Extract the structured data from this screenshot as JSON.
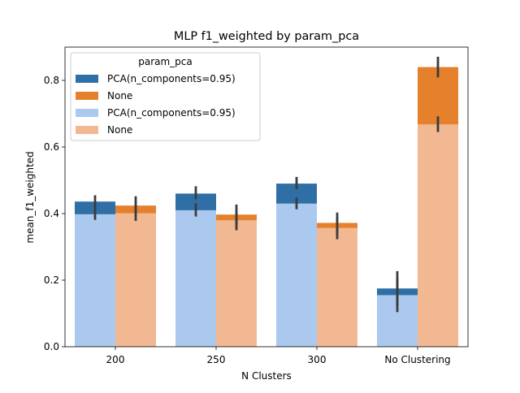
{
  "chart_data": {
    "type": "bar",
    "title": "MLP f1_weighted by param_pca",
    "xlabel": "N Clusters",
    "ylabel": "mean_f1_weighted",
    "categories": [
      "200",
      "250",
      "300",
      "No Clustering"
    ],
    "ylim": [
      0,
      0.9
    ],
    "yticks": [
      0.0,
      0.2,
      0.4,
      0.6,
      0.8
    ],
    "ytick_labels": [
      "0.0",
      "0.2",
      "0.4",
      "0.6",
      "0.8"
    ],
    "legend": {
      "title": "param_pca",
      "placement": "upper-left",
      "entries": [
        {
          "label": "PCA(n_components=0.95)",
          "color": "#2f6fa5"
        },
        {
          "label": "None",
          "color": "#e5812d"
        },
        {
          "label": "PCA(n_components=0.95)",
          "color": "#abc9ee"
        },
        {
          "label": "None",
          "color": "#f1b891"
        }
      ]
    },
    "layers": [
      {
        "group": "back",
        "series": [
          {
            "name": "PCA(n_components=0.95)",
            "color": "#2f6fa5",
            "values": [
              0.436,
              0.46,
              0.49,
              0.175
            ],
            "err_low": [
              0.418,
              0.443,
              0.473,
              0.124
            ],
            "err_high": [
              0.455,
              0.482,
              0.51,
              0.227
            ]
          },
          {
            "name": "None",
            "color": "#e5812d",
            "values": [
              0.424,
              0.397,
              0.372,
              0.84
            ],
            "err_low": [
              0.4,
              0.367,
              0.34,
              0.809
            ],
            "err_high": [
              0.452,
              0.427,
              0.403,
              0.871
            ]
          }
        ]
      },
      {
        "group": "front",
        "series": [
          {
            "name": "PCA(n_components=0.95)",
            "color": "#abc9ee",
            "values": [
              0.398,
              0.41,
              0.43,
              0.155
            ],
            "err_low": [
              0.381,
              0.391,
              0.413,
              0.104
            ],
            "err_high": [
              0.418,
              0.431,
              0.448,
              0.207
            ]
          },
          {
            "name": "None",
            "color": "#f1b891",
            "values": [
              0.401,
              0.38,
              0.357,
              0.668
            ],
            "err_low": [
              0.378,
              0.35,
              0.323,
              0.645
            ],
            "err_high": [
              0.428,
              0.408,
              0.388,
              0.692
            ]
          }
        ]
      }
    ]
  }
}
